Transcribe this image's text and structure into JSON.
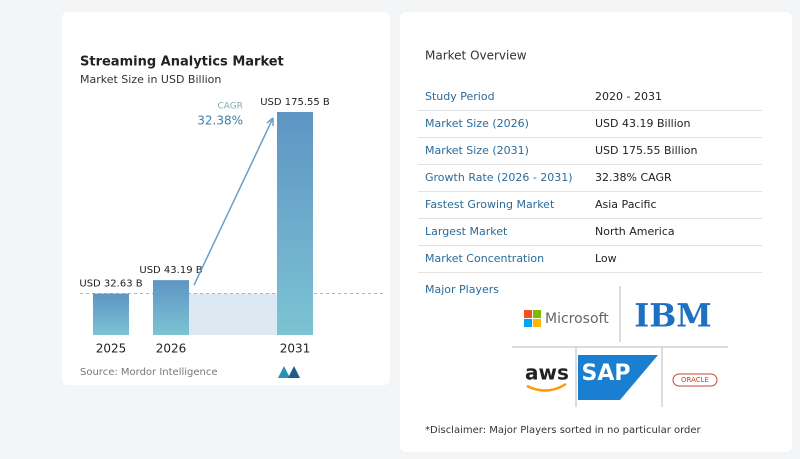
{
  "chart_data": {
    "type": "bar",
    "title": "Streaming Analytics Market",
    "subtitle": "Market Size in USD Billion",
    "categories": [
      "2025",
      "2026",
      "2031"
    ],
    "values": [
      32.63,
      43.19,
      175.55
    ],
    "value_labels": [
      "USD 32.63 B",
      "USD 43.19 B",
      "USD 175.55 B"
    ],
    "cagr_label": "CAGR",
    "cagr_value": "32.38%",
    "source": "Source: Mordor Intelligence"
  },
  "market_overview": {
    "title": "Market Overview",
    "rows": [
      [
        "Study Period",
        "2020 - 2031"
      ],
      [
        "Market Size (2026)",
        "USD 43.19 Billion"
      ],
      [
        "Market Size (2031)",
        "USD 175.55 Billion"
      ],
      [
        "Growth Rate (2026 - 2031)",
        "32.38% CAGR"
      ],
      [
        "Fastest Growing Market",
        "Asia Pacific"
      ],
      [
        "Largest Market",
        "North America"
      ],
      [
        "Market Concentration",
        "Low"
      ]
    ]
  },
  "major_players": {
    "title": "Major Players",
    "logos": [
      "Microsoft",
      "IBM",
      "aws",
      "SAP",
      "ORACLE"
    ],
    "disclaimer": "*Disclaimer: Major Players sorted in no particular order"
  }
}
